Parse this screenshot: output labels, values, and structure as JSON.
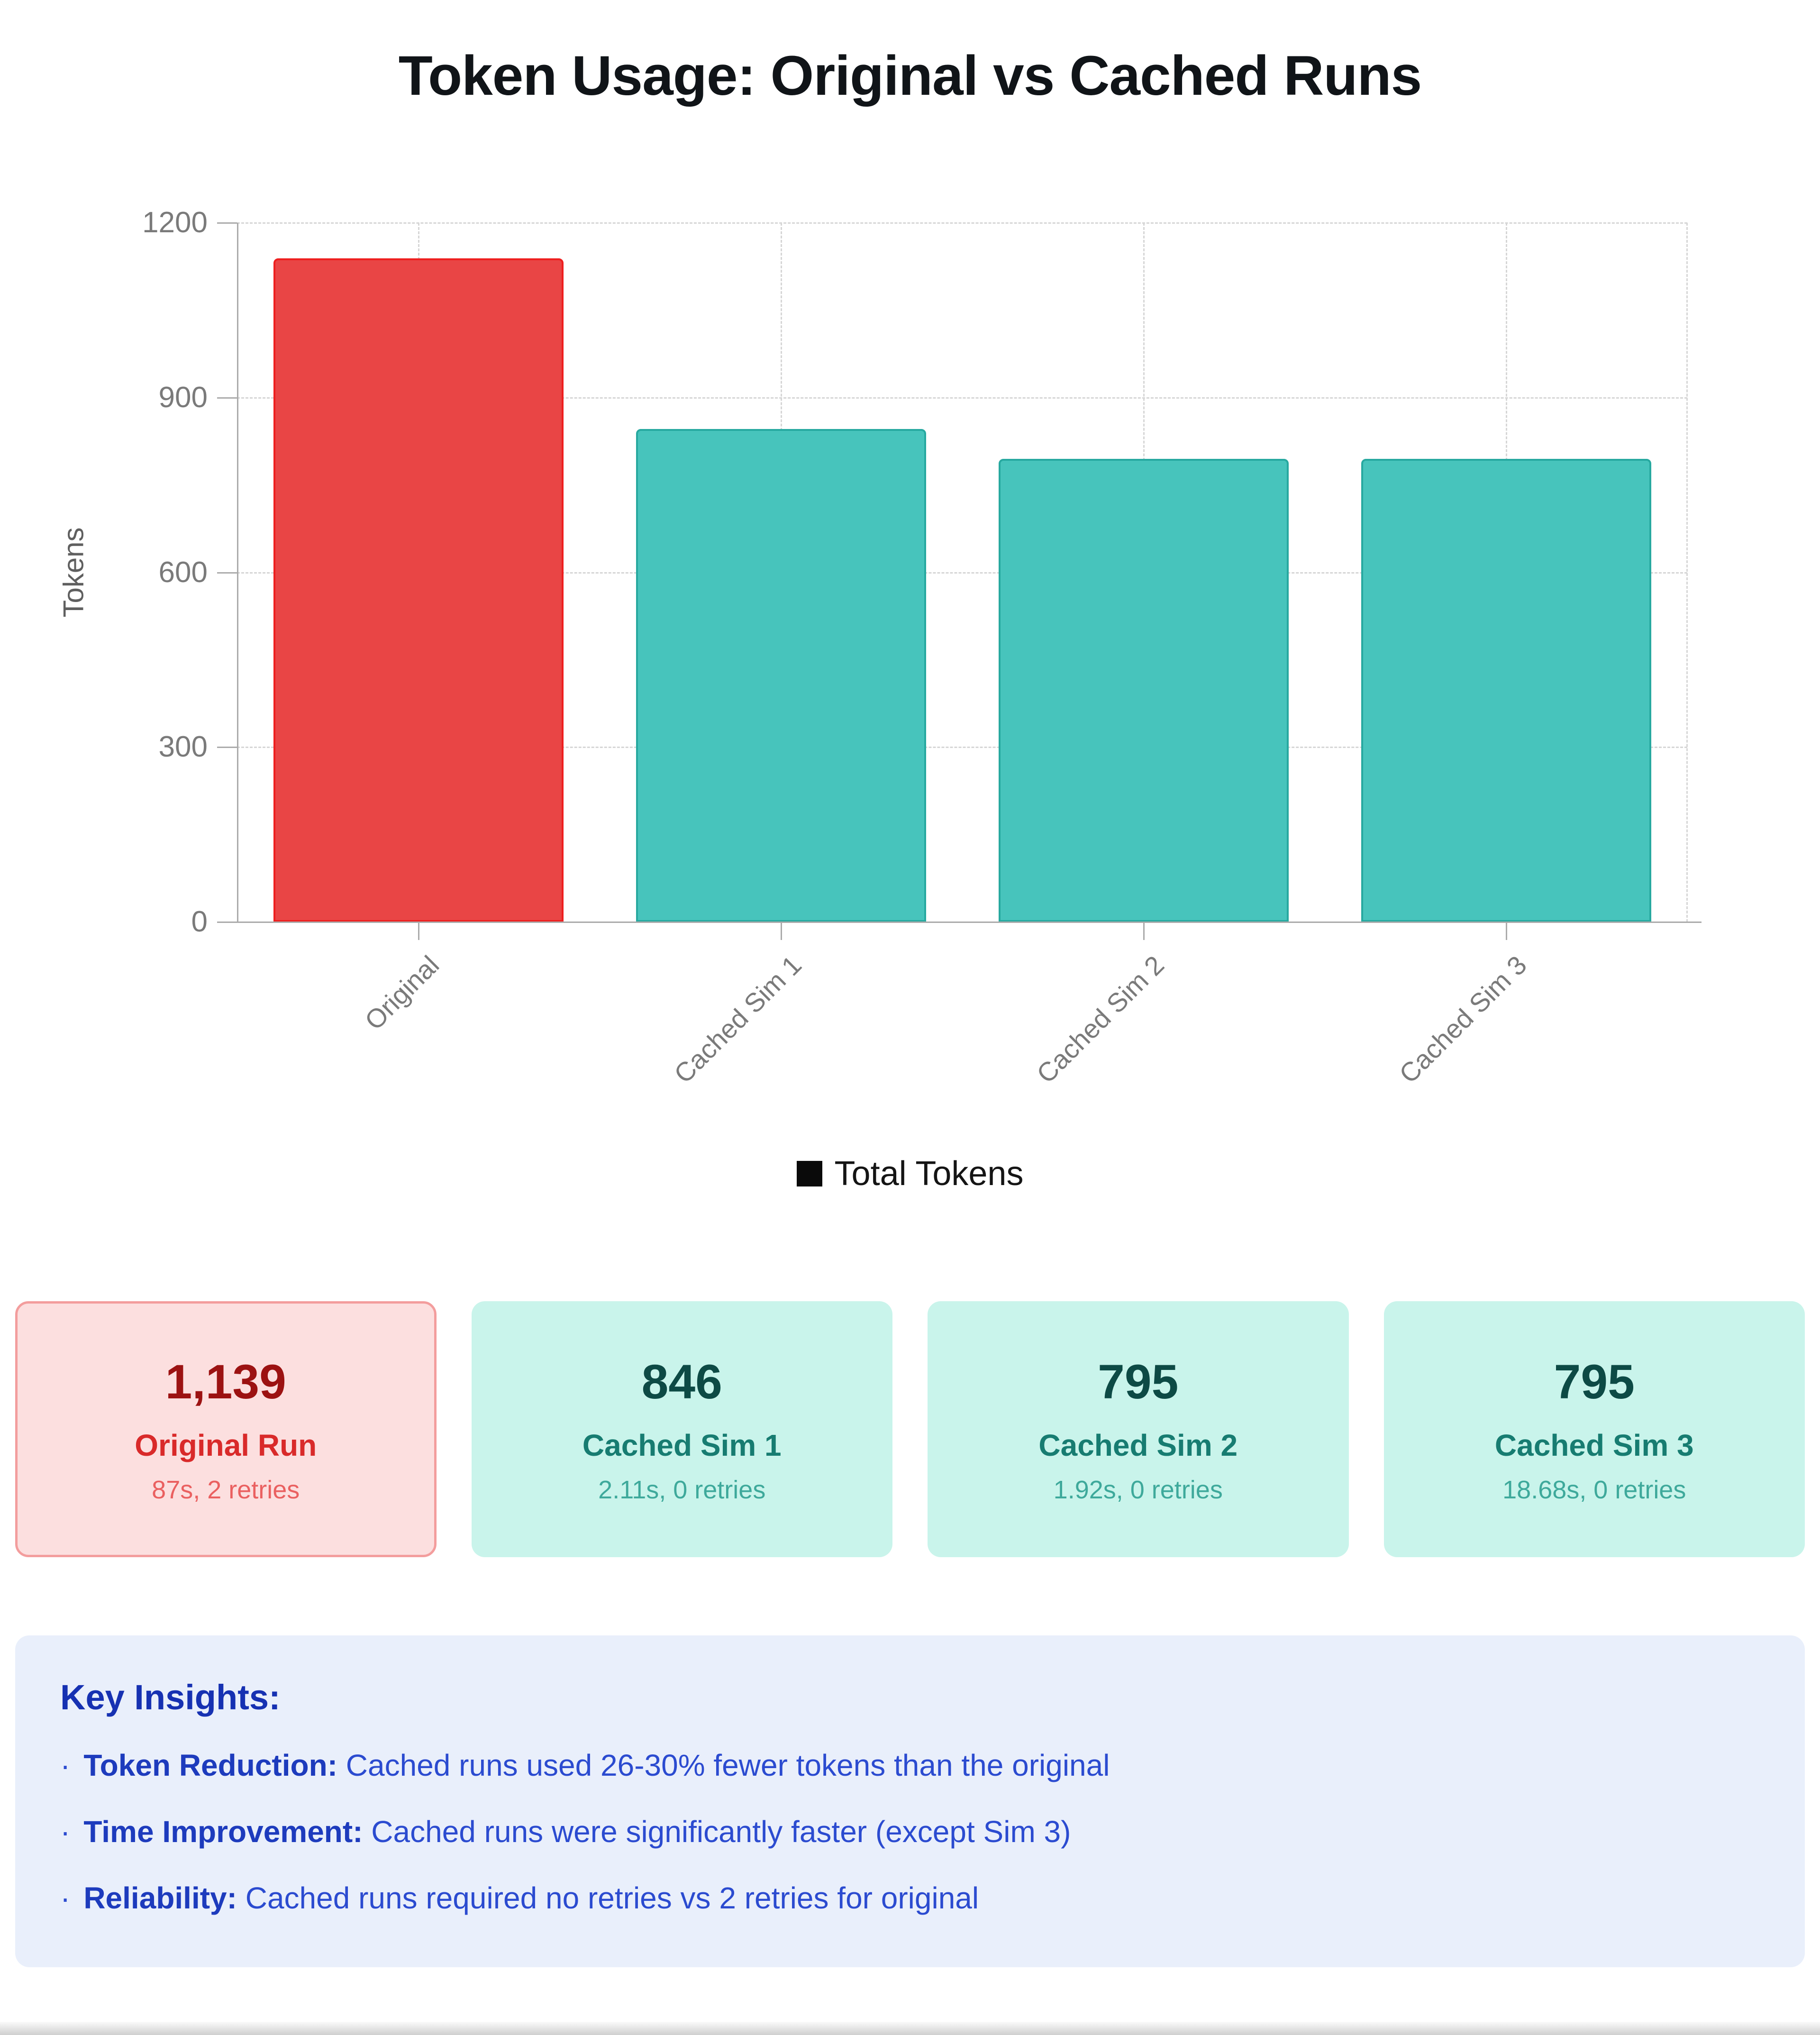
{
  "page": {
    "title": "Token Usage: Original vs Cached Runs"
  },
  "chart_data": {
    "type": "bar",
    "title": "Token Usage: Original vs Cached Runs",
    "categories": [
      "Original",
      "Cached Sim 1",
      "Cached Sim 2",
      "Cached Sim 3"
    ],
    "series": [
      {
        "name": "Total Tokens",
        "values": [
          1139,
          846,
          795,
          795
        ]
      }
    ],
    "xlabel": "",
    "ylabel": "Tokens",
    "ylim": [
      0,
      1200
    ],
    "yticks": [
      0,
      300,
      600,
      900,
      1200
    ],
    "grid": true,
    "grid_style": "dashed",
    "legend_position": "bottom",
    "bar_fill_colors": [
      "#e94545",
      "#47c4bc",
      "#47c4bc",
      "#47c4bc"
    ],
    "bar_border_colors": [
      "#ee1f1f",
      "#27a9a0",
      "#27a9a0",
      "#27a9a0"
    ]
  },
  "legend": {
    "label": "Total Tokens",
    "swatch_color": "#0a0a0a"
  },
  "cards": [
    {
      "value": "1,139",
      "label": "Original Run",
      "detail": "87s, 2 retries",
      "variant": "red"
    },
    {
      "value": "846",
      "label": "Cached Sim 1",
      "detail": "2.11s, 0 retries",
      "variant": "mint"
    },
    {
      "value": "795",
      "label": "Cached Sim 2",
      "detail": "1.92s, 0 retries",
      "variant": "mint"
    },
    {
      "value": "795",
      "label": "Cached Sim 3",
      "detail": "18.68s, 0 retries",
      "variant": "mint"
    }
  ],
  "insights": {
    "heading": "Key Insights:",
    "bullet_char": "·",
    "items": [
      {
        "label": "Token Reduction:",
        "text": "Cached runs used 26-30% fewer tokens than the original"
      },
      {
        "label": "Time Improvement:",
        "text": "Cached runs were significantly faster (except Sim 3)"
      },
      {
        "label": "Reliability:",
        "text": "Cached runs required no retries vs 2 retries for original"
      }
    ]
  },
  "colors": {
    "title_text": "#101418",
    "axis_line": "#ababab",
    "grid_line": "#d6d6d6",
    "tick_text": "#7a7a7a",
    "red_bar": "#e94545",
    "teal_bar": "#47c4bc",
    "card_red_bg": "#fcdfdf",
    "card_red_border": "#f39d9d",
    "card_mint_bg": "#c9f4eb",
    "insights_bg": "#e9effb",
    "insights_text": "#2b4bd0"
  }
}
